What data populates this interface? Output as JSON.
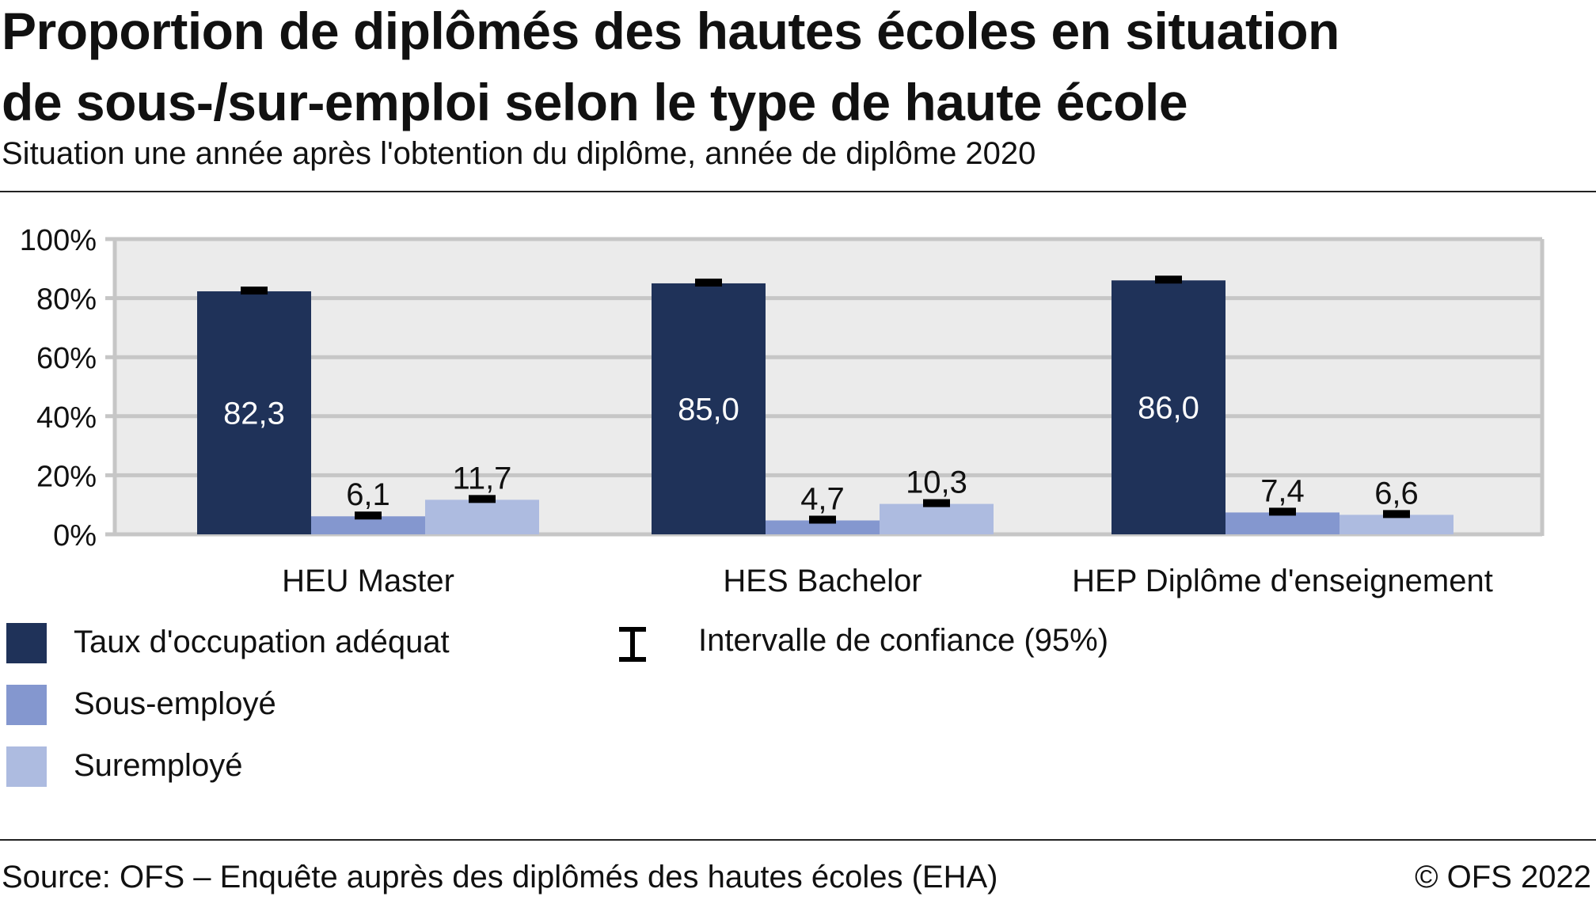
{
  "title_line1": "Proportion de diplômés des hautes écoles en situation",
  "title_line2": "de sous-/sur-emploi selon le type de haute école",
  "subtitle": "Situation une année après l'obtention du diplôme, année de diplôme 2020",
  "source": "Source: OFS – Enquête auprès des diplômés des hautes écoles (EHA)",
  "copyright": "© OFS 2022",
  "chart_data": {
    "type": "bar",
    "categories": [
      "HEU Master",
      "HES Bachelor",
      "HEP Diplôme d'enseignement"
    ],
    "series": [
      {
        "name": "Taux d'occupation adéquat",
        "values": [
          82.3,
          85.0,
          86.0
        ],
        "labels": [
          "82,3",
          "85,0",
          "86,0"
        ],
        "color": "#1f3259"
      },
      {
        "name": "Sous-employé",
        "values": [
          6.1,
          4.7,
          7.4
        ],
        "labels": [
          "6,1",
          "4,7",
          "7,4"
        ],
        "color": "#8497cf"
      },
      {
        "name": "Suremployé",
        "values": [
          11.7,
          10.3,
          6.6
        ],
        "labels": [
          "11,7",
          "10,3",
          "6,6"
        ],
        "color": "#adbbe0"
      }
    ],
    "ci_legend": "Intervalle de confiance (95%)",
    "ylim": [
      0,
      100
    ],
    "yticks": [
      "0%",
      "20%",
      "40%",
      "60%",
      "80%",
      "100%"
    ],
    "grid": true,
    "plot_background": "#ebebeb",
    "legend_placement": "bottom-left"
  }
}
